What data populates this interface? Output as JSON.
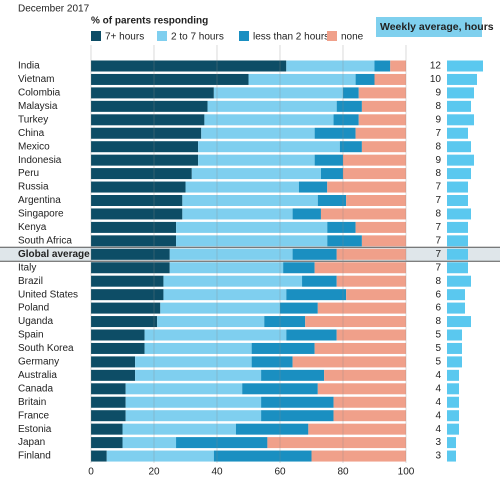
{
  "chart_data": {
    "type": "stacked-barh",
    "subtitle": "December 2017",
    "xlabel": "% of parents responding",
    "categories": [
      "India",
      "Vietnam",
      "Colombia",
      "Malaysia",
      "Turkey",
      "China",
      "Mexico",
      "Indonesia",
      "Peru",
      "Russia",
      "Argentina",
      "Singapore",
      "Kenya",
      "South Africa",
      "Global average",
      "Italy",
      "Brazil",
      "United States",
      "Poland",
      "Uganda",
      "Spain",
      "South Korea",
      "Germany",
      "Australia",
      "Canada",
      "Britain",
      "France",
      "Estonia",
      "Japan",
      "Finland"
    ],
    "series": [
      {
        "name": "7+ hours",
        "color": "#0d4d66",
        "values": [
          62,
          50,
          39,
          37,
          36,
          35,
          34,
          34,
          32,
          30,
          29,
          29,
          27,
          27,
          25,
          25,
          23,
          23,
          22,
          21,
          17,
          17,
          14,
          14,
          11,
          11,
          11,
          10,
          10,
          5
        ]
      },
      {
        "name": "2 to 7 hours",
        "color": "#7fcfef",
        "values": [
          28,
          34,
          41,
          41,
          41,
          36,
          45,
          37,
          41,
          36,
          43,
          35,
          48,
          48,
          39,
          36,
          44,
          39,
          38,
          34,
          45,
          34,
          37,
          40,
          37,
          43,
          43,
          36,
          17,
          34
        ]
      },
      {
        "name": "less than 2 hours",
        "color": "#1a8fc1",
        "values": [
          5,
          6,
          5,
          8,
          8,
          13,
          7,
          9,
          7,
          9,
          9,
          9,
          9,
          11,
          14,
          10,
          11,
          19,
          12,
          13,
          16,
          20,
          13,
          20,
          24,
          23,
          23,
          23,
          29,
          31
        ]
      },
      {
        "name": "none",
        "color": "#f0a08a",
        "values": [
          5,
          10,
          15,
          14,
          15,
          16,
          14,
          20,
          20,
          25,
          19,
          27,
          16,
          14,
          22,
          29,
          22,
          19,
          28,
          32,
          22,
          29,
          36,
          26,
          28,
          23,
          23,
          31,
          44,
          30
        ]
      }
    ],
    "highlight": 14,
    "xlim": [
      0,
      100
    ],
    "xticks": [
      0,
      20,
      40,
      60,
      80,
      100
    ],
    "grid": true,
    "weekly": {
      "title": "Weekly average, hours",
      "color": "#5ac8ef",
      "values": [
        12,
        10,
        9,
        8,
        9,
        7,
        8,
        9,
        8,
        7,
        7,
        8,
        7,
        7,
        7,
        7,
        8,
        6,
        6,
        8,
        5,
        5,
        5,
        4,
        4,
        4,
        4,
        4,
        3,
        3
      ]
    }
  }
}
